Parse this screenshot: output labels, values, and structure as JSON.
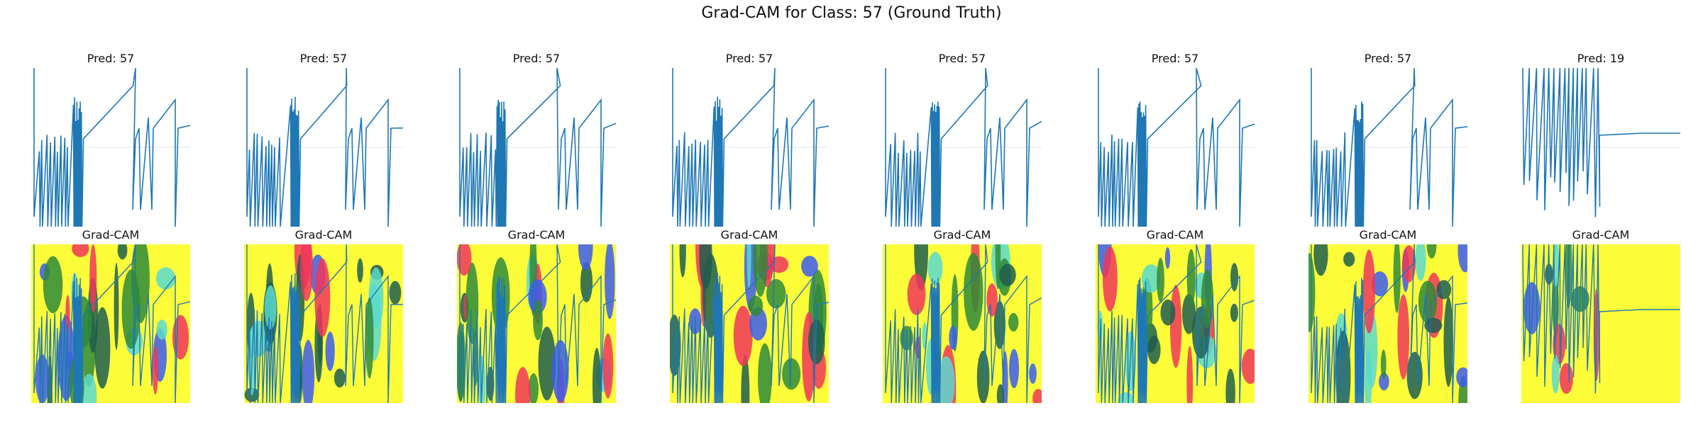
{
  "figure": {
    "title": "Grad-CAM for Class: 57 (Ground Truth)",
    "heatmap_label": "Grad-CAM"
  },
  "colors": {
    "line": "#1f77b4",
    "grid": "#e6e6e6",
    "cam_low": "#fdfd3a",
    "cam_mid_red": "#f0365c",
    "cam_green": "#2f8a3a",
    "cam_dark": "#1e5e4f",
    "cam_cyan": "#5ad9d0",
    "cam_blue": "#3c5cf0"
  },
  "chart_data": [
    {
      "type": "line",
      "panel": 1,
      "title": "Pred: 57"
    },
    {
      "type": "line",
      "panel": 2,
      "title": "Pred: 57"
    },
    {
      "type": "line",
      "panel": 3,
      "title": "Pred: 57"
    },
    {
      "type": "line",
      "panel": 4,
      "title": "Pred: 57"
    },
    {
      "type": "line",
      "panel": 5,
      "title": "Pred: 57"
    },
    {
      "type": "line",
      "panel": 6,
      "title": "Pred: 57"
    },
    {
      "type": "line",
      "panel": 7,
      "title": "Pred: 57"
    },
    {
      "type": "line",
      "panel": 8,
      "title": "Pred: 19"
    }
  ]
}
